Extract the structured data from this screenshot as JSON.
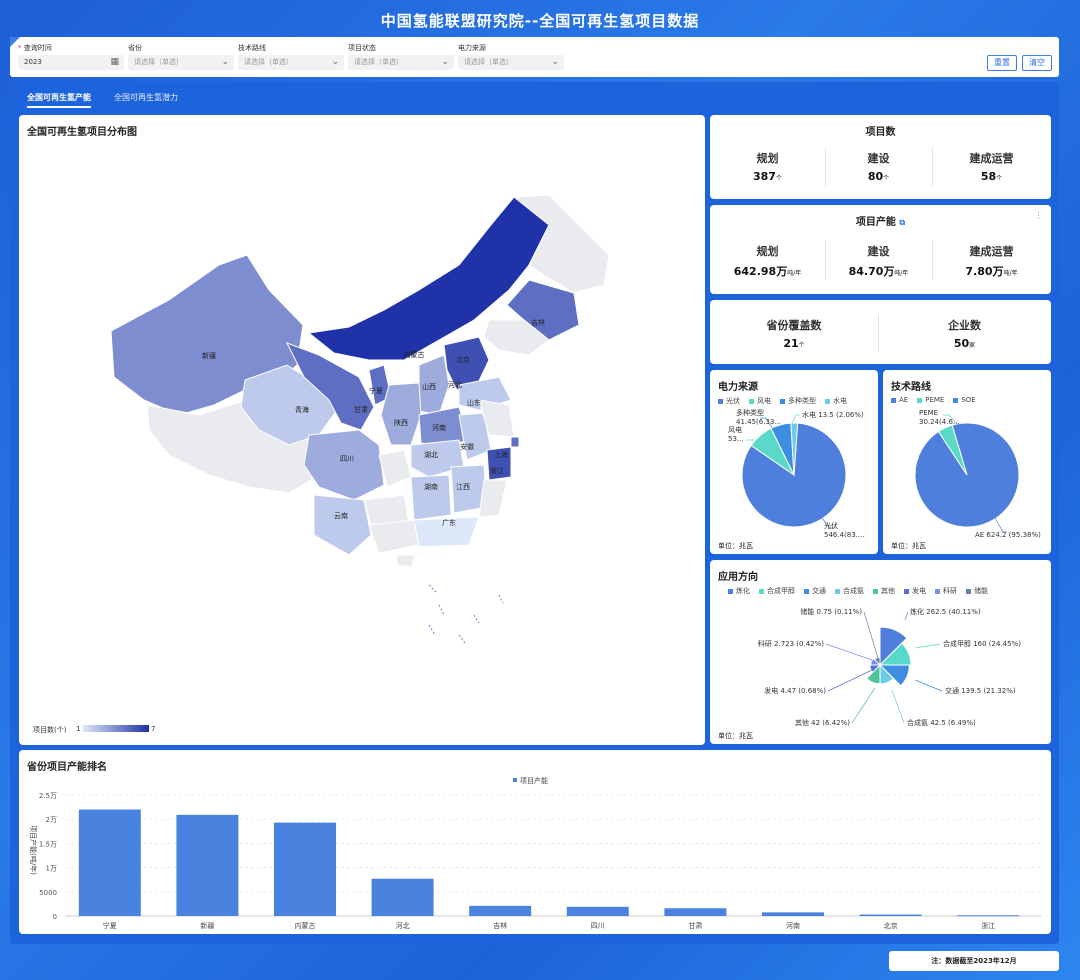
{
  "header": {
    "title": "中国氢能联盟研究院--全国可再生氢项目数据"
  },
  "filters": [
    {
      "label": "查询时间",
      "required": true,
      "value": "2023",
      "icon": "calendar-icon"
    },
    {
      "label": "省份",
      "required": false,
      "placeholder": "请选择（单选）",
      "icon": "chevron-down-icon"
    },
    {
      "label": "技术路线",
      "required": false,
      "placeholder": "请选择（单选）",
      "icon": "chevron-down-icon"
    },
    {
      "label": "项目状态",
      "required": false,
      "placeholder": "请选择（单选）",
      "icon": "chevron-down-icon"
    },
    {
      "label": "电力来源",
      "required": false,
      "placeholder": "请选择（单选）",
      "icon": "chevron-down-icon"
    }
  ],
  "buttons": {
    "reset": "重置",
    "clear": "清空"
  },
  "tabs": [
    {
      "label": "全国可再生氢产能",
      "active": true
    },
    {
      "label": "全国可再生氢潜力",
      "active": false
    }
  ],
  "map": {
    "title": "全国可再生氢项目分布图",
    "legend_label": "项目数(个)",
    "legend_min": "1",
    "legend_max": "7",
    "colors": {
      "low": "#dde8f8",
      "high": "#1f32a8"
    },
    "provinces": [
      {
        "name": "新疆",
        "count": 4
      },
      {
        "name": "内蒙古",
        "count": 7
      },
      {
        "name": "吉林",
        "count": 5
      },
      {
        "name": "北京",
        "count": 5
      },
      {
        "name": "河北",
        "count": 6
      },
      {
        "name": "宁夏",
        "count": 5
      },
      {
        "name": "山西",
        "count": 3
      },
      {
        "name": "甘肃",
        "count": 5
      },
      {
        "name": "青海",
        "count": 2
      },
      {
        "name": "山东",
        "count": 2
      },
      {
        "name": "陕西",
        "count": 3
      },
      {
        "name": "河南",
        "count": 4
      },
      {
        "name": "安徽",
        "count": 2
      },
      {
        "name": "上海",
        "count": 5
      },
      {
        "name": "四川",
        "count": 3
      },
      {
        "name": "湖北",
        "count": 2
      },
      {
        "name": "浙江",
        "count": 6
      },
      {
        "name": "湖南",
        "count": 2
      },
      {
        "name": "江西",
        "count": 2
      },
      {
        "name": "云南",
        "count": 2
      },
      {
        "name": "广东",
        "count": 1
      }
    ]
  },
  "project_count": {
    "title": "项目数",
    "items": [
      {
        "label": "规划",
        "value": "387",
        "unit": "个"
      },
      {
        "label": "建设",
        "value": "80",
        "unit": "个"
      },
      {
        "label": "建成运营",
        "value": "58",
        "unit": "个"
      }
    ]
  },
  "capacity": {
    "title": "项目产能",
    "items": [
      {
        "label": "规划",
        "value": "642.98万",
        "unit": "吨/年"
      },
      {
        "label": "建设",
        "value": "84.70万",
        "unit": "吨/年"
      },
      {
        "label": "建成运营",
        "value": "7.80万",
        "unit": "吨/年"
      }
    ]
  },
  "coverage": {
    "items": [
      {
        "label": "省份覆盖数",
        "value": "21",
        "unit": "个"
      },
      {
        "label": "企业数",
        "value": "50",
        "unit": "家"
      }
    ]
  },
  "power_source": {
    "title": "电力来源",
    "unit_label": "单位：兆瓦",
    "legend": [
      "光伏",
      "风电",
      "多种类型",
      "水电"
    ],
    "labels": [
      "光伏\n546.4(83....",
      "风电\n53...",
      "多种类型\n41.45(6.33...",
      "水电 13.5 (2.06%)"
    ]
  },
  "tech_route": {
    "title": "技术路线",
    "unit_label": "单位：兆瓦",
    "legend": [
      "AE",
      "PEME",
      "SOE"
    ],
    "labels": [
      "AE 624.2 (95.38%)",
      "PEME\n30.24(4.6..."
    ]
  },
  "application": {
    "title": "应用方向",
    "unit_label": "单位：兆瓦",
    "legend": [
      "炼化",
      "合成甲醇",
      "交通",
      "合成氨",
      "其他",
      "发电",
      "科研",
      "储能"
    ],
    "labels": [
      "炼化 262.5 (40.11%)",
      "合成甲醇 160 (24.45%)",
      "交通 139.5 (21.32%)",
      "合成氨 42.5 (6.49%)",
      "其他 42 (6.42%)",
      "发电 4.47 (0.68%)",
      "科研 2.723 (0.42%)",
      "储能 0.75 (0.11%)"
    ]
  },
  "ranking": {
    "title": "省份项目产能排名",
    "legend": "项目产能",
    "ylabel": "项目产能(吨/年)",
    "ticks": [
      "0",
      "5000",
      "1万",
      "1.5万",
      "2万",
      "2.5万"
    ]
  },
  "footer_note": "注：数据截至2023年12月",
  "chart_data": [
    {
      "type": "pie",
      "title": "电力来源",
      "categories": [
        "光伏",
        "风电",
        "多种类型",
        "水电"
      ],
      "values": [
        546.4,
        53,
        41.45,
        13.5
      ],
      "colors": [
        "#4f7fdc",
        "#5ad8c8",
        "#3d8ee0",
        "#6ccbe8"
      ]
    },
    {
      "type": "pie",
      "title": "技术路线",
      "categories": [
        "AE",
        "PEME",
        "SOE"
      ],
      "values": [
        624.2,
        30.24,
        0
      ],
      "colors": [
        "#4f7fdc",
        "#5ad8c8",
        "#3d8ee0"
      ]
    },
    {
      "type": "pie",
      "title": "应用方向",
      "categories": [
        "炼化",
        "合成甲醇",
        "交通",
        "合成氨",
        "其他",
        "发电",
        "科研",
        "储能"
      ],
      "values": [
        262.5,
        160,
        139.5,
        42.5,
        42,
        4.47,
        2.723,
        0.75
      ],
      "colors": [
        "#4f7fdc",
        "#5ad8c8",
        "#3d8ee0",
        "#6ccbe8",
        "#4fc39a",
        "#5a6fd0",
        "#7a8fe8",
        "#6c7fa8"
      ]
    },
    {
      "type": "bar",
      "title": "省份项目产能排名",
      "categories": [
        "宁夏",
        "新疆",
        "内蒙古",
        "河北",
        "吉林",
        "四川",
        "甘肃",
        "河南",
        "北京",
        "浙江"
      ],
      "series": [
        {
          "name": "项目产能",
          "values": [
            22000,
            20900,
            19300,
            7700,
            2100,
            1900,
            1600,
            750,
            300,
            150
          ]
        }
      ],
      "ylim": [
        0,
        25000
      ],
      "ylabel": "项目产能(吨/年)",
      "color": "#4a82e0"
    }
  ]
}
